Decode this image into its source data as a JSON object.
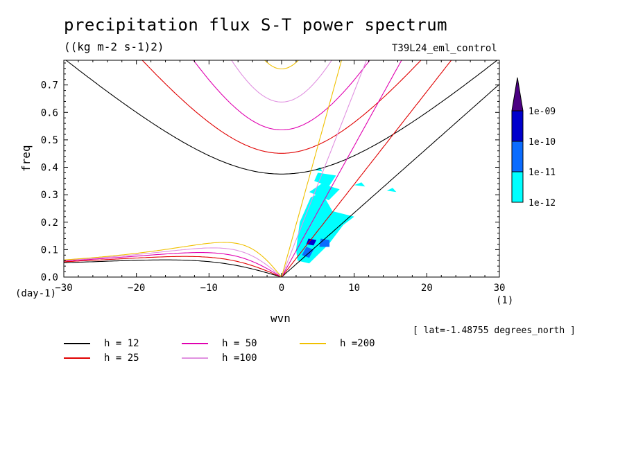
{
  "title": "precipitation flux S-T power spectrum",
  "subtitle": "((kg m-2 s-1)2)",
  "run_name": "T39L24_eml_control",
  "x_unit": "(day-1)",
  "y_unit": "(1)",
  "lat_note": "[ lat=-1.48755 degrees_north ]",
  "chart_data": {
    "type": "heatmap",
    "xlabel": "wvn",
    "ylabel": "freq",
    "xlim": [
      -30,
      30
    ],
    "ylim": [
      0,
      0.79
    ],
    "xticks": [
      -30,
      -20,
      -10,
      0,
      10,
      20,
      30
    ],
    "yticks": [
      0.0,
      0.1,
      0.2,
      0.3,
      0.4,
      0.5,
      0.6,
      0.7
    ],
    "colorbar": {
      "labels": [
        "1e-09",
        "1e-10",
        "1e-11",
        "1e-12"
      ],
      "colors": [
        "#4B0082",
        "#0000CC",
        "#0A6CFF",
        "#00FFFF"
      ]
    },
    "dispersion_curves": [
      {
        "name": "h = 12",
        "h": 12,
        "color": "#000000"
      },
      {
        "name": "h = 25",
        "h": 25,
        "color": "#E00000"
      },
      {
        "name": "h = 50",
        "h": 50,
        "color": "#E000B0"
      },
      {
        "name": "h =100",
        "h": 100,
        "color": "#E090E0"
      },
      {
        "name": "h =200",
        "h": 200,
        "color": "#F0C000"
      }
    ],
    "power_regions": [
      {
        "level": "1e-12",
        "color": "#00FFFF",
        "points": [
          [
            2.2,
            0.06
          ],
          [
            3.8,
            0.05
          ],
          [
            6.5,
            0.12
          ],
          [
            8.5,
            0.19
          ],
          [
            10,
            0.22
          ],
          [
            7,
            0.24
          ],
          [
            5.5,
            0.31
          ],
          [
            4,
            0.29
          ],
          [
            2.5,
            0.2
          ],
          [
            2,
            0.1
          ]
        ]
      },
      {
        "level": "1e-12",
        "color": "#00FFFF",
        "points": [
          [
            3.8,
            0.31
          ],
          [
            6.5,
            0.28
          ],
          [
            8,
            0.32
          ],
          [
            5.5,
            0.34
          ]
        ]
      },
      {
        "level": "1e-12",
        "color": "#00FFFF",
        "points": [
          [
            4.5,
            0.35
          ],
          [
            6.5,
            0.33
          ],
          [
            7.5,
            0.37
          ],
          [
            5,
            0.38
          ]
        ]
      },
      {
        "level": "1e-12",
        "color": "#00FFFF",
        "points": [
          [
            4.6,
            0.39
          ],
          [
            5.6,
            0.385
          ],
          [
            5.3,
            0.4
          ]
        ]
      },
      {
        "level": "1e-12",
        "color": "#00FFFF",
        "points": [
          [
            10,
            0.335
          ],
          [
            11.5,
            0.33
          ],
          [
            11,
            0.345
          ]
        ]
      },
      {
        "level": "1e-12",
        "color": "#00FFFF",
        "points": [
          [
            14.5,
            0.315
          ],
          [
            15.8,
            0.31
          ],
          [
            15.3,
            0.325
          ]
        ]
      },
      {
        "level": "1e-11",
        "color": "#0A6CFF",
        "points": [
          [
            2.8,
            0.08
          ],
          [
            3.8,
            0.07
          ],
          [
            4.4,
            0.1
          ],
          [
            3.4,
            0.11
          ]
        ]
      },
      {
        "level": "1e-11",
        "color": "#0A6CFF",
        "points": [
          [
            5.2,
            0.11
          ],
          [
            6.6,
            0.11
          ],
          [
            6.6,
            0.135
          ],
          [
            5.4,
            0.14
          ]
        ]
      },
      {
        "level": "1e-10",
        "color": "#0000CC",
        "points": [
          [
            3.4,
            0.12
          ],
          [
            4.4,
            0.115
          ],
          [
            4.8,
            0.135
          ],
          [
            3.7,
            0.14
          ]
        ]
      }
    ]
  },
  "legend": [
    {
      "label": "h = 12",
      "color": "#000000"
    },
    {
      "label": "h = 50",
      "color": "#E000B0"
    },
    {
      "label": "h =200",
      "color": "#F0C000"
    },
    {
      "label": "h = 25",
      "color": "#E00000"
    },
    {
      "label": "h =100",
      "color": "#E090E0"
    }
  ]
}
